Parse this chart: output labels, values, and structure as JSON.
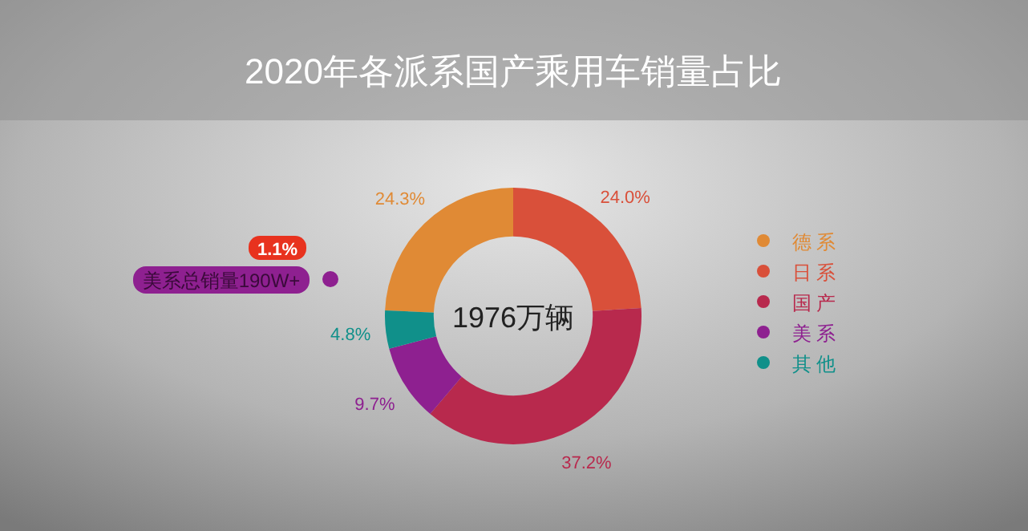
{
  "chart_data": {
    "type": "donut",
    "title": "2020年各派系国产乘用车销量占比",
    "categories": [
      "德系",
      "日系",
      "国产",
      "美系",
      "其他"
    ],
    "values": [
      24.3,
      24.0,
      37.2,
      9.7,
      4.8
    ],
    "value_labels": [
      "24.3%",
      "24.0%",
      "37.2%",
      "9.7%",
      "4.8%"
    ],
    "colors": [
      "#e08a35",
      "#d9503a",
      "#b8294d",
      "#8e2090",
      "#10908a"
    ],
    "legend": "right",
    "annotations": [
      "1976万辆",
      "1.1%",
      "美系总销量190W+"
    ]
  }
}
